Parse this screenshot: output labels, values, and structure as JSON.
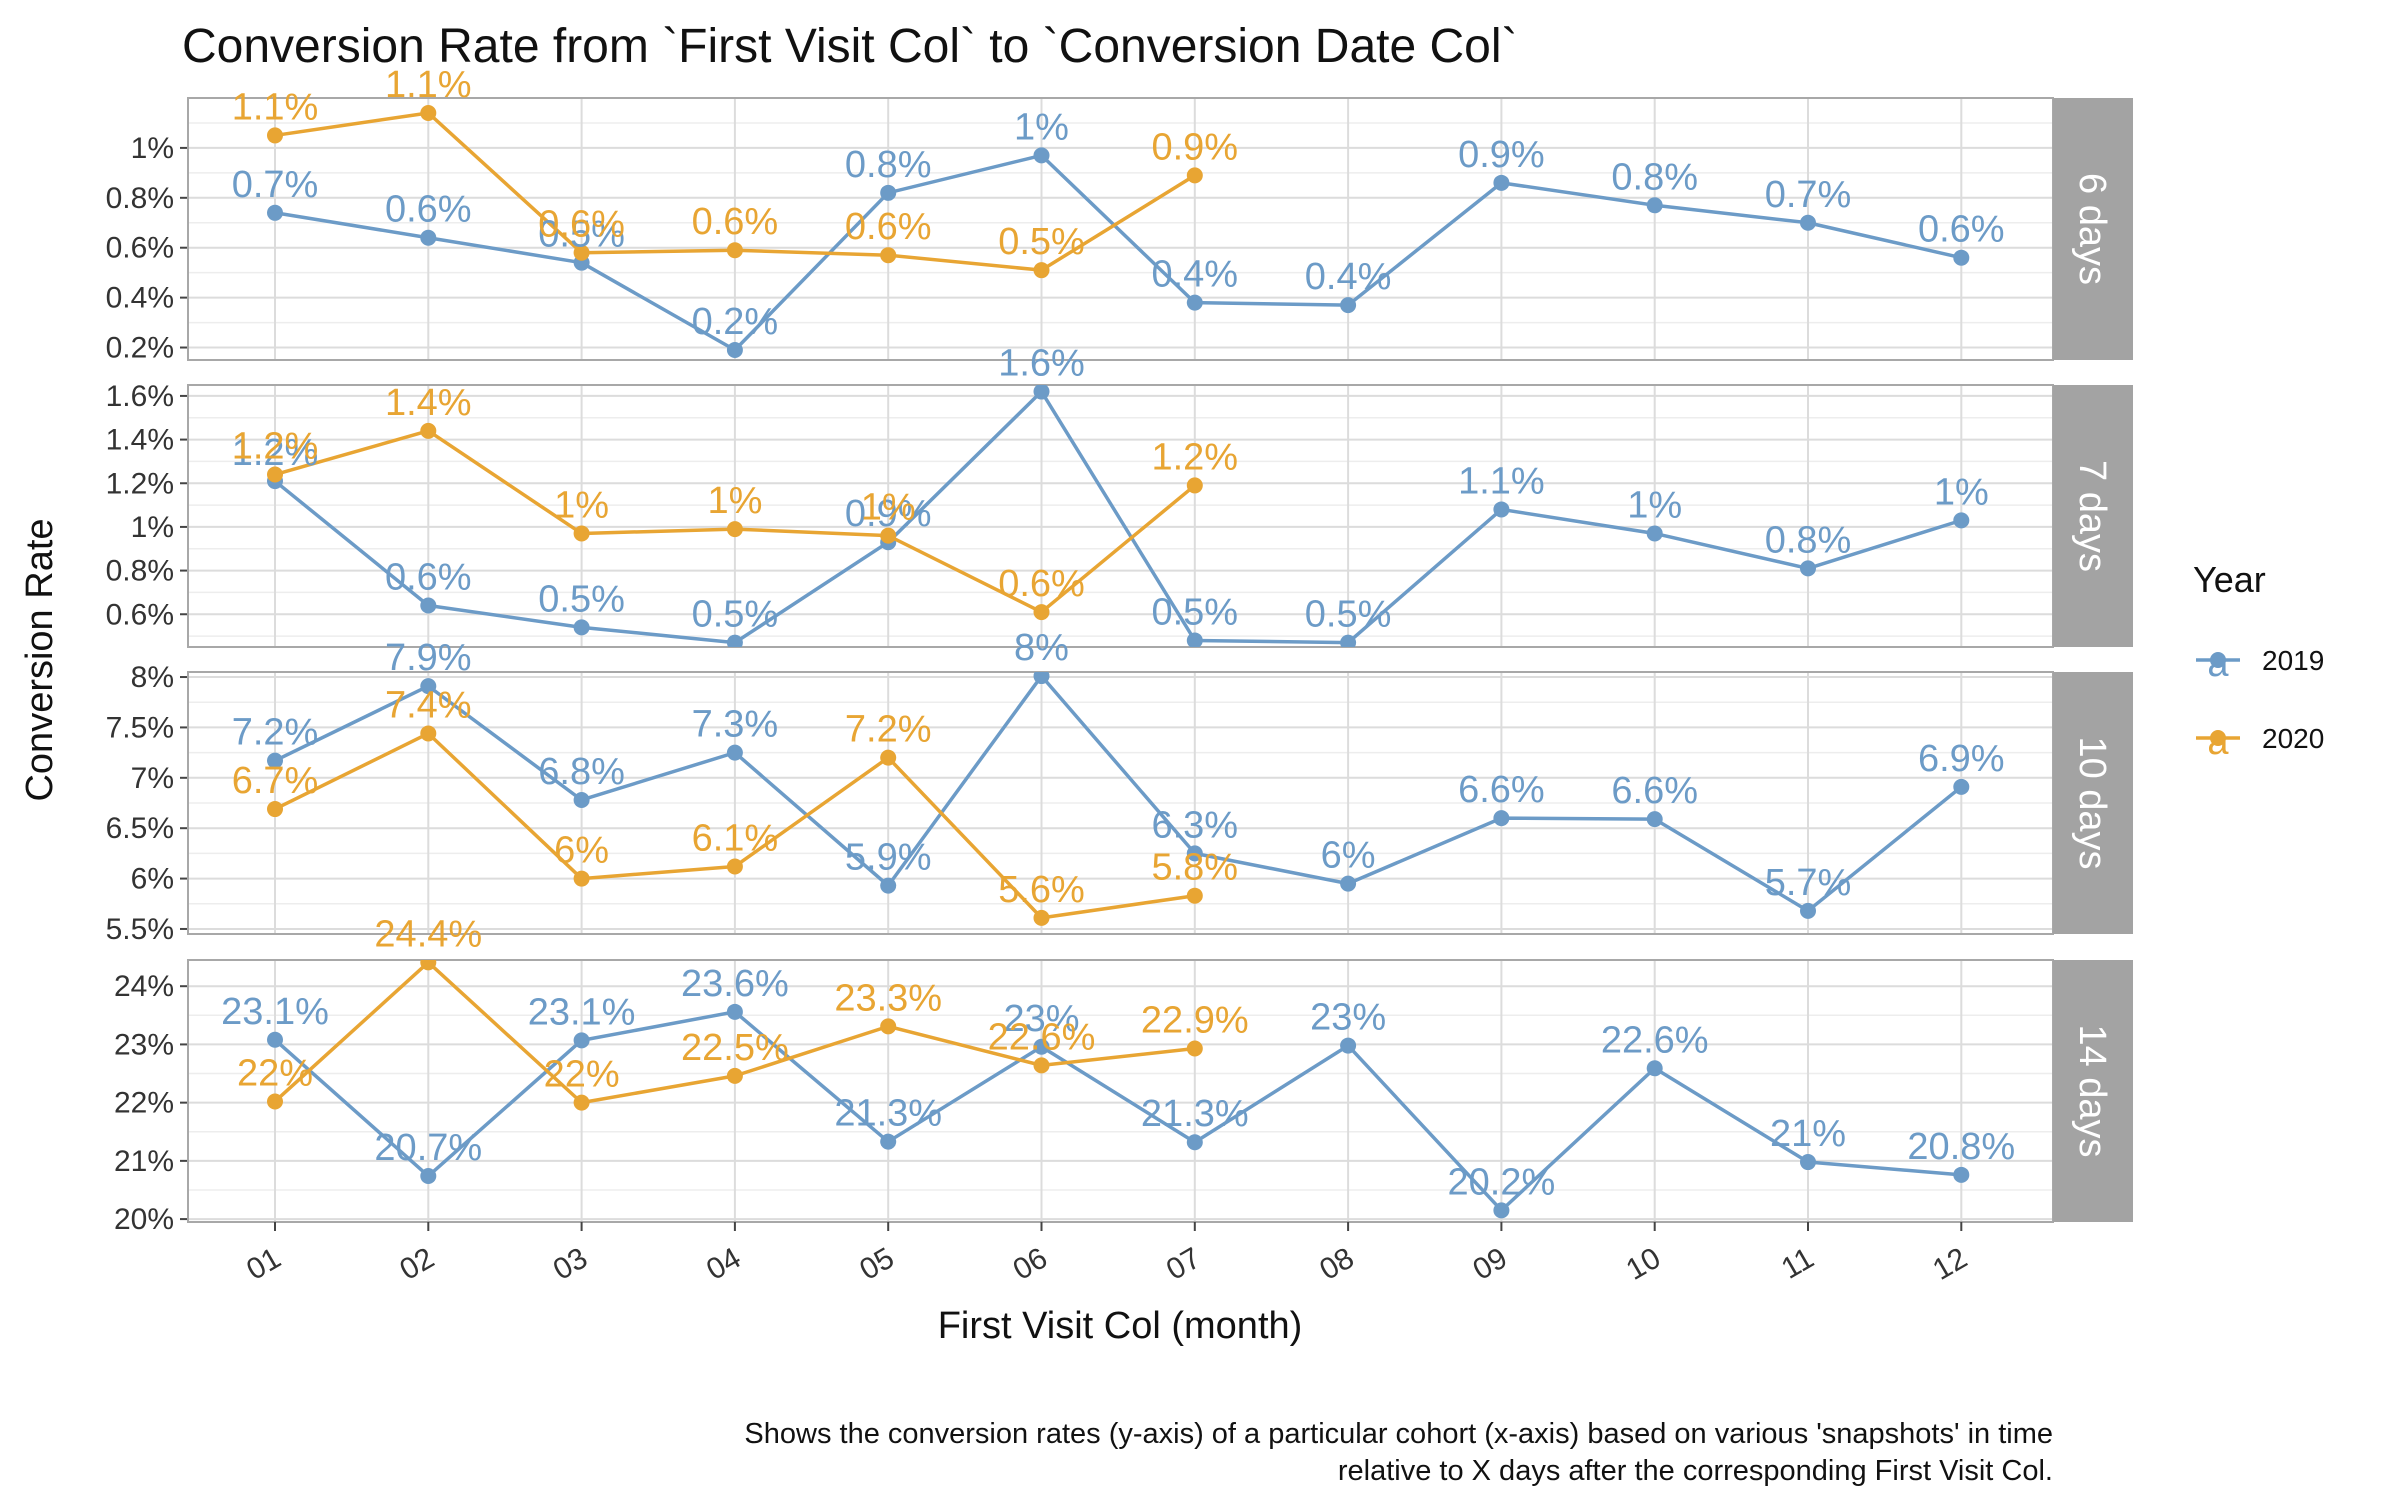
{
  "chart_data": {
    "type": "line",
    "title": "Conversion Rate from `First Visit Col` to `Conversion Date Col`",
    "xlabel": "First Visit Col (month)",
    "ylabel": "Conversion Rate",
    "caption_lines": [
      "Shows the conversion rates (y-axis) of a particular cohort (x-axis) based on various 'snapshots' in time",
      "relative to X days after the corresponding First Visit Col."
    ],
    "categories": [
      "01",
      "02",
      "03",
      "04",
      "05",
      "06",
      "07",
      "08",
      "09",
      "10",
      "11",
      "12"
    ],
    "legend": {
      "title": "Year",
      "placement": "right",
      "glyph_letter": "a",
      "entries": [
        {
          "name": "2019",
          "color": "#6c9bc7"
        },
        {
          "name": "2020",
          "color": "#e8a533"
        }
      ]
    },
    "grid": true,
    "panels": [
      {
        "strip": "6 days",
        "ylim": [
          0.15,
          1.2
        ],
        "yticks": [
          0.2,
          0.4,
          0.6,
          0.8,
          1.0
        ],
        "ytick_labels": [
          "0.2%",
          "0.4%",
          "0.6%",
          "0.8%",
          "1%"
        ],
        "series": [
          {
            "name": "2019",
            "values": [
              0.74,
              0.64,
              0.54,
              0.19,
              0.82,
              0.97,
              0.38,
              0.37,
              0.86,
              0.77,
              0.7,
              0.56
            ],
            "labels": [
              "0.7%",
              "0.6%",
              "0.5%",
              "0.2%",
              "0.8%",
              "1%",
              "0.4%",
              "0.4%",
              "0.9%",
              "0.8%",
              "0.7%",
              "0.6%"
            ]
          },
          {
            "name": "2020",
            "values": [
              1.05,
              1.14,
              0.58,
              0.59,
              0.57,
              0.51,
              0.89
            ],
            "labels": [
              "1.1%",
              "1.1%",
              "0.6%",
              "0.6%",
              "0.6%",
              "0.5%",
              "0.9%"
            ]
          }
        ]
      },
      {
        "strip": "7 days",
        "ylim": [
          0.45,
          1.65
        ],
        "yticks": [
          0.6,
          0.8,
          1.0,
          1.2,
          1.4,
          1.6
        ],
        "ytick_labels": [
          "0.6%",
          "0.8%",
          "1%",
          "1.2%",
          "1.4%",
          "1.6%"
        ],
        "series": [
          {
            "name": "2019",
            "values": [
              1.21,
              0.64,
              0.54,
              0.47,
              0.93,
              1.62,
              0.48,
              0.47,
              1.08,
              0.97,
              0.81,
              1.03
            ],
            "labels": [
              "1.2%",
              "0.6%",
              "0.5%",
              "0.5%",
              "0.9%",
              "1.6%",
              "0.5%",
              "0.5%",
              "1.1%",
              "1%",
              "0.8%",
              "1%"
            ]
          },
          {
            "name": "2020",
            "values": [
              1.24,
              1.44,
              0.97,
              0.99,
              0.96,
              0.61,
              1.19
            ],
            "labels": [
              "1.2%",
              "1.4%",
              "1%",
              "1%",
              "1%",
              "0.6%",
              "1.2%"
            ]
          }
        ]
      },
      {
        "strip": "10 days",
        "ylim": [
          5.45,
          8.05
        ],
        "yticks": [
          5.5,
          6.0,
          6.5,
          7.0,
          7.5,
          8.0
        ],
        "ytick_labels": [
          "5.5%",
          "6%",
          "6.5%",
          "7%",
          "7.5%",
          "8%"
        ],
        "series": [
          {
            "name": "2019",
            "values": [
              7.17,
              7.91,
              6.78,
              7.25,
              5.93,
              8.01,
              6.25,
              5.95,
              6.6,
              6.59,
              5.68,
              6.91
            ],
            "labels": [
              "7.2%",
              "7.9%",
              "6.8%",
              "7.3%",
              "5.9%",
              "8%",
              "6.3%",
              "6%",
              "6.6%",
              "6.6%",
              "5.7%",
              "6.9%"
            ]
          },
          {
            "name": "2020",
            "values": [
              6.69,
              7.44,
              6.0,
              6.12,
              7.2,
              5.61,
              5.83
            ],
            "labels": [
              "6.7%",
              "7.4%",
              "6%",
              "6.1%",
              "7.2%",
              "5.6%",
              "5.8%"
            ]
          }
        ]
      },
      {
        "strip": "14 days",
        "ylim": [
          19.95,
          24.45
        ],
        "yticks": [
          20,
          21,
          22,
          23,
          24
        ],
        "ytick_labels": [
          "20%",
          "21%",
          "22%",
          "23%",
          "24%"
        ],
        "series": [
          {
            "name": "2019",
            "values": [
              23.08,
              20.74,
              23.07,
              23.56,
              21.33,
              22.96,
              21.32,
              22.98,
              20.15,
              22.59,
              20.98,
              20.76
            ],
            "labels": [
              "23.1%",
              "20.7%",
              "23.1%",
              "23.6%",
              "21.3%",
              "23%",
              "21.3%",
              "23%",
              "20.2%",
              "22.6%",
              "21%",
              "20.8%"
            ]
          },
          {
            "name": "2020",
            "values": [
              22.02,
              24.41,
              22.0,
              22.46,
              23.31,
              22.64,
              22.93
            ],
            "labels": [
              "22%",
              "24.4%",
              "22%",
              "22.5%",
              "23.3%",
              "22.6%",
              "22.9%"
            ]
          }
        ]
      }
    ]
  }
}
